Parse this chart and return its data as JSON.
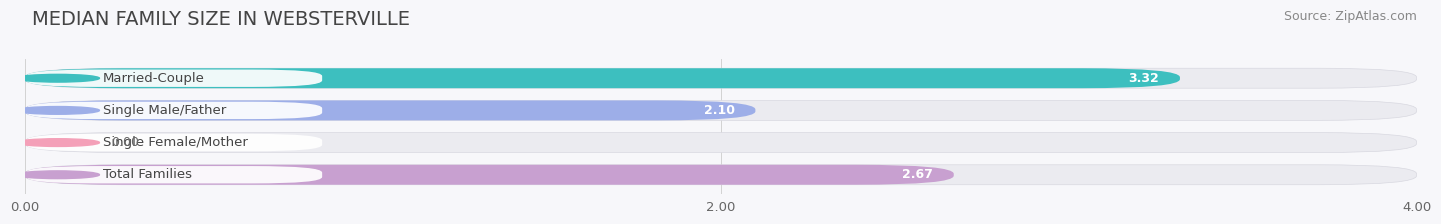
{
  "title": "MEDIAN FAMILY SIZE IN WEBSTERVILLE",
  "source": "Source: ZipAtlas.com",
  "categories": [
    "Married-Couple",
    "Single Male/Father",
    "Single Female/Mother",
    "Total Families"
  ],
  "values": [
    3.32,
    2.1,
    0.0,
    2.67
  ],
  "bar_colors": [
    "#3dbfbf",
    "#9daee8",
    "#f4a0b8",
    "#c8a0d0"
  ],
  "bar_bg_color": "#ebebf0",
  "xlim": [
    0,
    4.0
  ],
  "xticks": [
    0.0,
    2.0,
    4.0
  ],
  "xtick_labels": [
    "0.00",
    "2.00",
    "4.00"
  ],
  "label_fontsize": 9.5,
  "value_fontsize": 9,
  "title_fontsize": 14,
  "source_fontsize": 9,
  "background_color": "#f7f7fa",
  "bar_height": 0.62,
  "label_color": "#444444"
}
